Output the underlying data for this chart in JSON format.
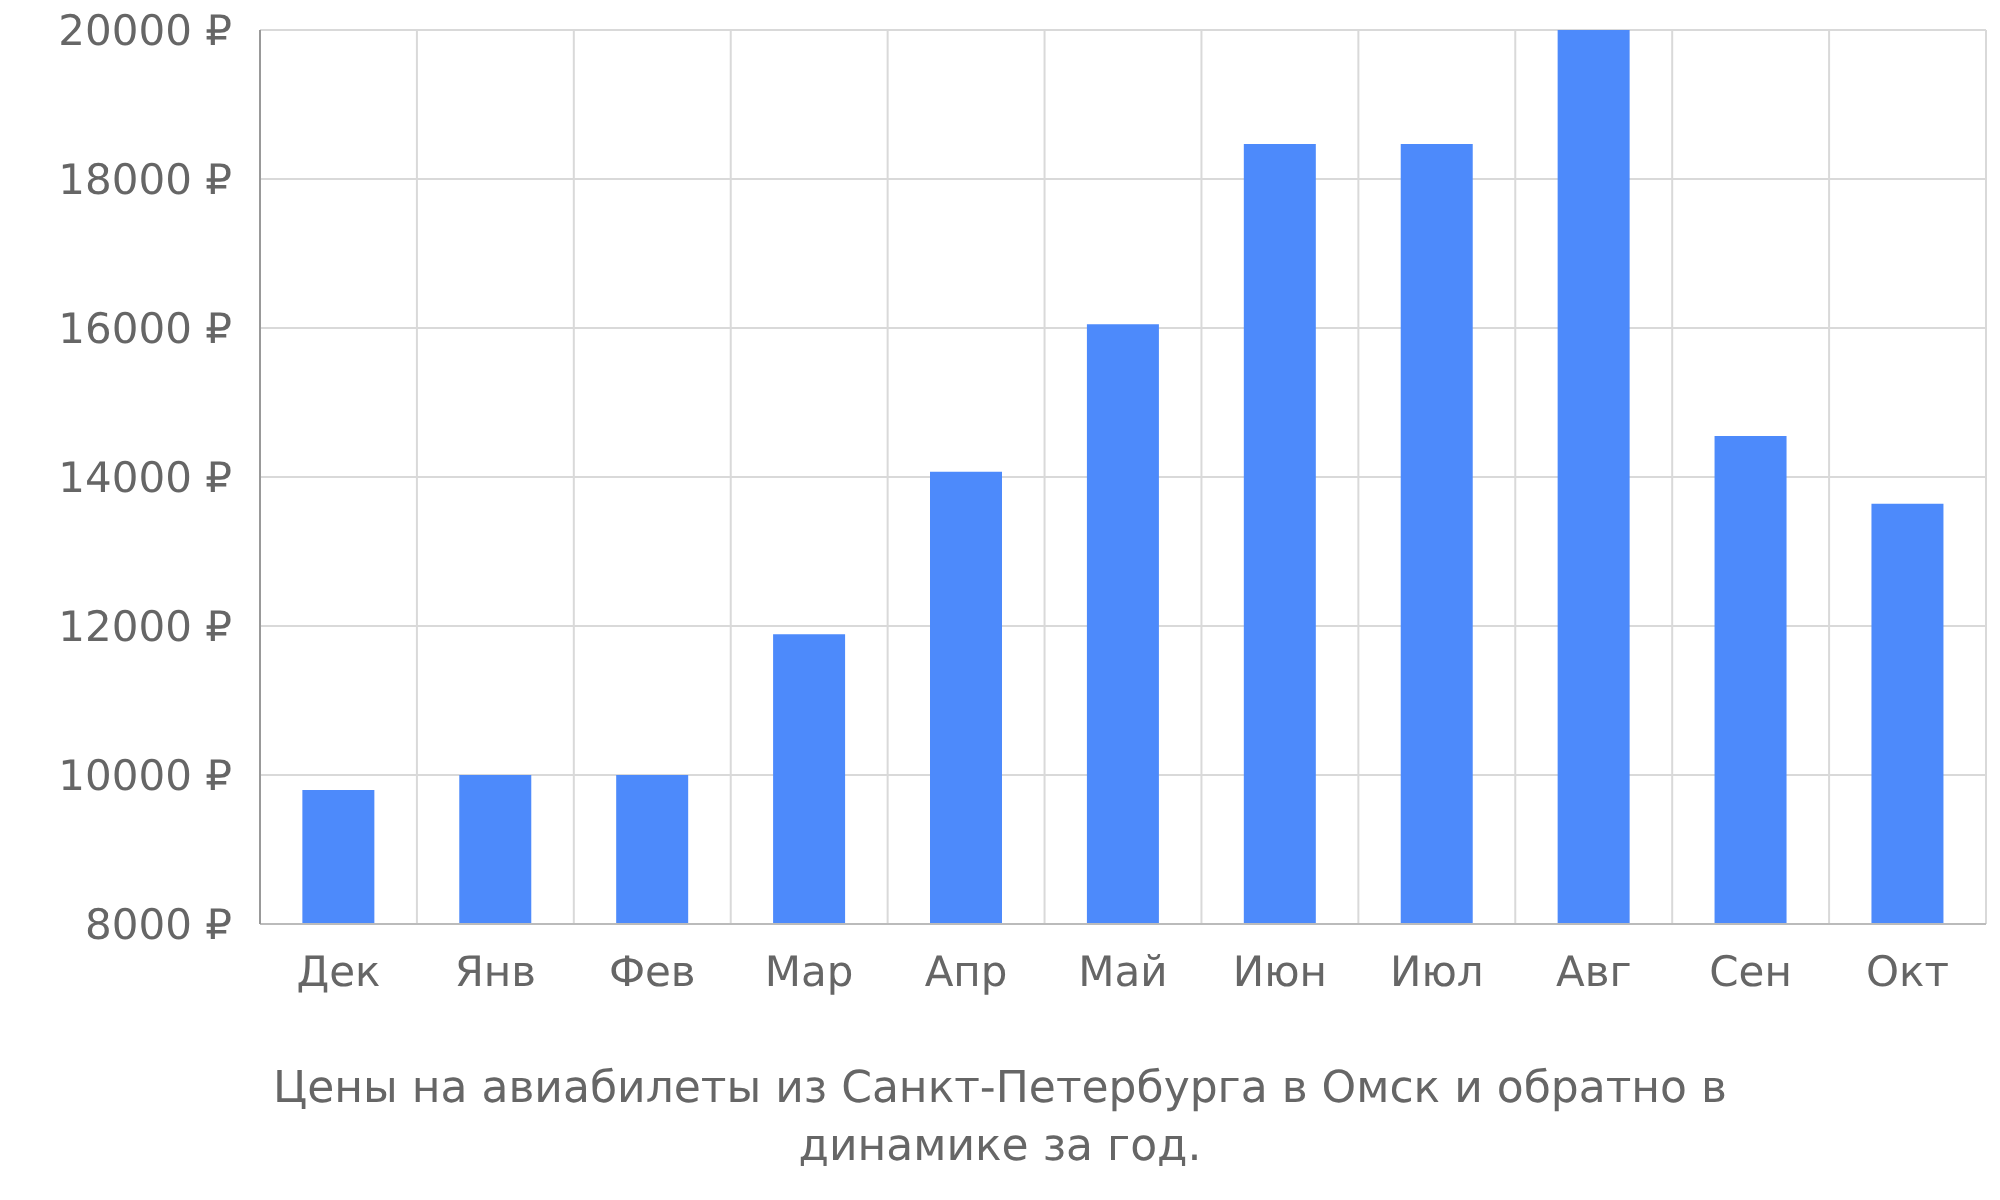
{
  "chart_data": {
    "type": "bar",
    "categories": [
      "Дек",
      "Янв",
      "Фев",
      "Мар",
      "Апр",
      "Май",
      "Июн",
      "Июл",
      "Авг",
      "Сен",
      "Окт"
    ],
    "values": [
      9800,
      10000,
      10000,
      11890,
      14070,
      16050,
      18470,
      18470,
      20000,
      14550,
      13640
    ],
    "color": "#4d8afb",
    "ylim": [
      8000,
      20000
    ],
    "yticks": [
      {
        "value": 8000,
        "label": "8000 ₽"
      },
      {
        "value": 10000,
        "label": "10000 ₽"
      },
      {
        "value": 12000,
        "label": "12000 ₽"
      },
      {
        "value": 14000,
        "label": "14000 ₽"
      },
      {
        "value": 16000,
        "label": "16000 ₽"
      },
      {
        "value": 18000,
        "label": "18000 ₽"
      },
      {
        "value": 20000,
        "label": "20000 ₽"
      }
    ],
    "grid": true,
    "annotations": [
      "Цены на авиабилеты из Санкт-Петербурга в Омск и обратно в динамике за год."
    ]
  }
}
